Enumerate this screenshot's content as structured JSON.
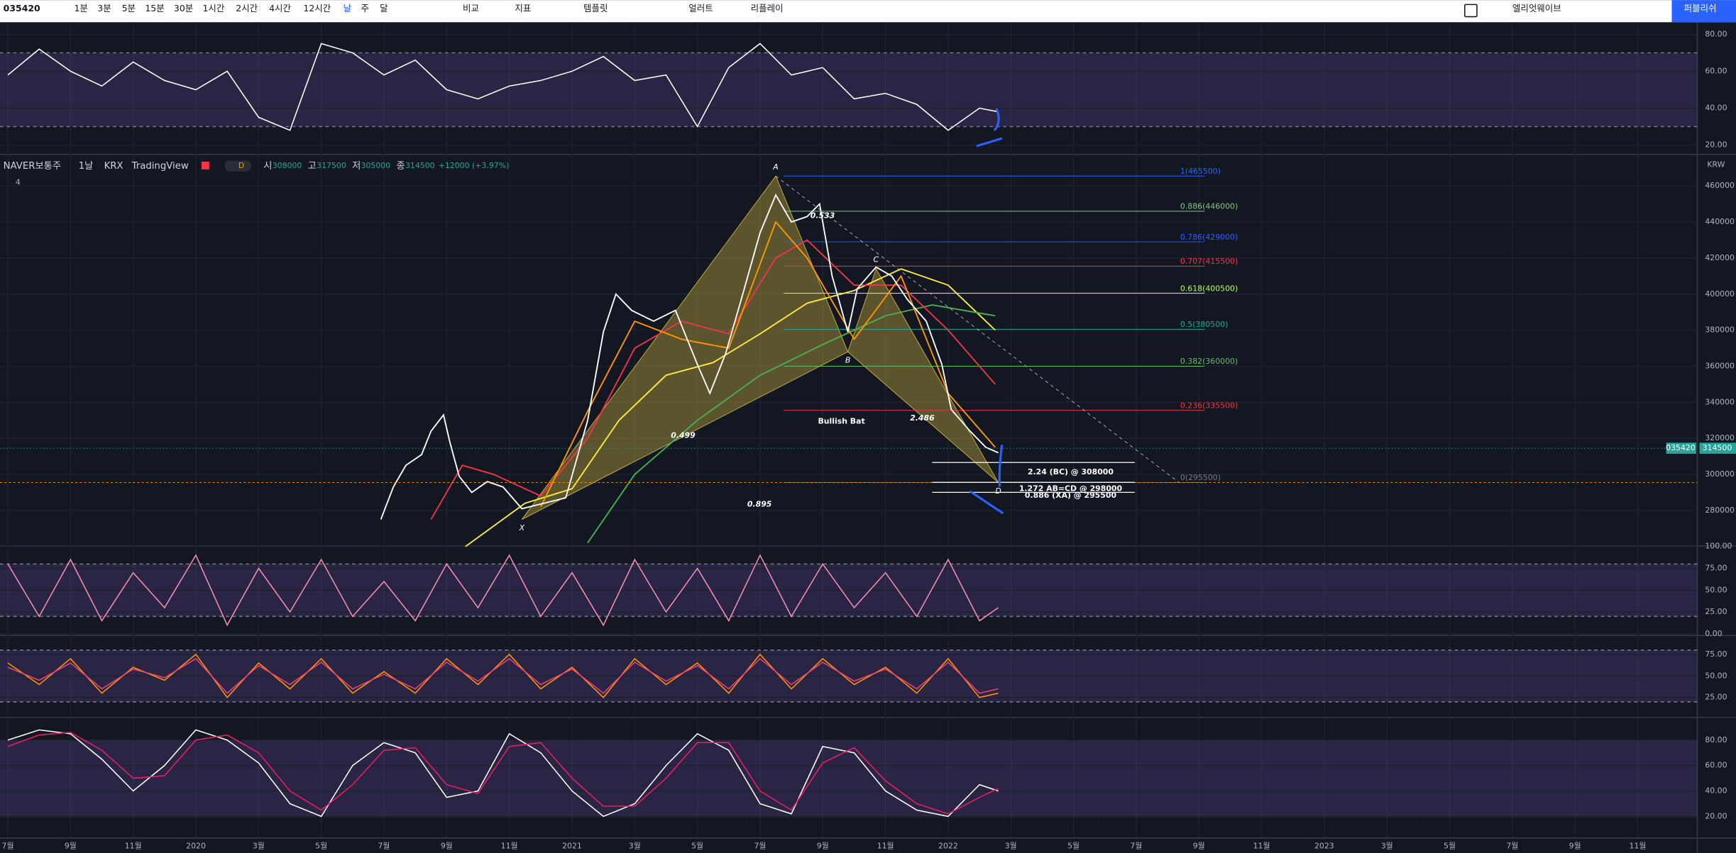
{
  "toolbar": {
    "symbol": "035420",
    "intervals": [
      "1분",
      "3분",
      "5분",
      "15분",
      "30분",
      "1시간",
      "2시간",
      "4시간",
      "12시간",
      "날",
      "주",
      "달"
    ],
    "buttons": [
      "비교",
      "지표",
      "템플릿",
      "얼러트",
      "리플레이"
    ],
    "elliott": "엘리엇웨이브",
    "publish": "퍼블리쉬"
  },
  "legend": {
    "symbol": "NAVER보통주",
    "interval": "1날",
    "exchange": "KRX",
    "source": "TradingView",
    "badge": "D",
    "ohlc": [
      {
        "label": "시",
        "value": 308000
      },
      {
        "label": "고",
        "value": 317500
      },
      {
        "label": "저",
        "value": 305000
      },
      {
        "label": "종",
        "value": 314500
      }
    ],
    "change": "+12000 (+3.97%)",
    "indicator_count": "4"
  },
  "currency": "KRW",
  "last": {
    "symbol": "035420",
    "price": 314500
  },
  "time_axis": {
    "xlim": [
      -0.25,
      53.9
    ],
    "xticks": [
      {
        "value": 0,
        "label": "7월"
      },
      {
        "value": 2,
        "label": "9월"
      },
      {
        "value": 4,
        "label": "11월"
      },
      {
        "value": 6,
        "label": "2020"
      },
      {
        "value": 8,
        "label": "3월"
      },
      {
        "value": 10,
        "label": "5월"
      },
      {
        "value": 12,
        "label": "7월"
      },
      {
        "value": 14,
        "label": "9월"
      },
      {
        "value": 16,
        "label": "11월"
      },
      {
        "value": 18,
        "label": "2021"
      },
      {
        "value": 20,
        "label": "3월"
      },
      {
        "value": 22,
        "label": "5월"
      },
      {
        "value": 24,
        "label": "7월"
      },
      {
        "value": 26,
        "label": "9월"
      },
      {
        "value": 28,
        "label": "11월"
      },
      {
        "value": 30,
        "label": "2022"
      },
      {
        "value": 32,
        "label": "3월"
      },
      {
        "value": 34,
        "label": "5월"
      },
      {
        "value": 36,
        "label": "7월"
      },
      {
        "value": 38,
        "label": "9월"
      },
      {
        "value": 40,
        "label": "11월"
      },
      {
        "value": 42,
        "label": "2023"
      },
      {
        "value": 44,
        "label": "3월"
      },
      {
        "value": 46,
        "label": "5월"
      },
      {
        "value": 48,
        "label": "7월"
      },
      {
        "value": 50,
        "label": "9월"
      },
      {
        "value": 52,
        "label": "11월"
      }
    ]
  },
  "price": {
    "ylim": [
      260600,
      477200
    ],
    "yticks": [
      460000,
      440000,
      420000,
      400000,
      380000,
      360000,
      340000,
      320000,
      300000,
      280000
    ],
    "x": [
      11.9,
      12.3,
      12.7,
      13.2,
      13.5,
      13.9,
      14.1,
      14.4,
      14.8,
      15.3,
      15.8,
      16.4,
      17.1,
      17.8,
      18.5,
      19.0,
      19.4,
      19.9,
      20.6,
      21.3,
      22.0,
      22.4,
      22.9,
      23.4,
      24.0,
      24.5,
      25.0,
      25.5,
      25.9,
      26.3,
      26.8,
      27.1,
      27.7,
      28.2,
      28.7,
      29.3,
      29.8,
      30.1,
      30.7,
      31.2,
      31.6
    ],
    "values": [
      275000,
      293000,
      305000,
      311000,
      324000,
      333000,
      318000,
      299000,
      290000,
      296000,
      293000,
      281000,
      284000,
      287000,
      330000,
      379000,
      400000,
      391000,
      385000,
      391000,
      361000,
      345000,
      367000,
      397000,
      434000,
      455000,
      440000,
      443000,
      450000,
      410000,
      379000,
      403000,
      415000,
      410000,
      397000,
      385000,
      361000,
      336000,
      324000,
      315000,
      312000
    ],
    "mas": [
      {
        "color": "#ffeb3b",
        "x": [
          14.6,
          16.5,
          18,
          19.5,
          21,
          22.5,
          24,
          25.5,
          27,
          28.5,
          30,
          31.5
        ],
        "values": [
          260000,
          284000,
          292000,
          330000,
          355000,
          362000,
          378000,
          395000,
          402000,
          414000,
          405000,
          380000
        ]
      },
      {
        "color": "#4caf50",
        "x": [
          18.5,
          20,
          22,
          24,
          26,
          28,
          29.5,
          31.5
        ],
        "values": [
          262000,
          300000,
          330000,
          355000,
          372000,
          388000,
          394000,
          388000
        ]
      },
      {
        "color": "#f23645",
        "x": [
          13.5,
          14.5,
          15.5,
          17,
          18.5,
          20,
          21.5,
          23,
          24.5,
          25.5,
          27,
          28.5,
          30,
          31.5
        ],
        "values": [
          275000,
          305000,
          300000,
          288000,
          320000,
          370000,
          385000,
          378000,
          420000,
          430000,
          405000,
          405000,
          380000,
          350000
        ]
      },
      {
        "color": "#ff9800",
        "x": [
          17,
          18.5,
          20,
          21.5,
          23,
          24.5,
          25.5,
          27,
          28.5,
          30,
          31.5
        ],
        "values": [
          282000,
          335000,
          385000,
          375000,
          370000,
          440000,
          420000,
          375000,
          410000,
          345000,
          315000
        ]
      }
    ],
    "pattern": {
      "title": "Bullish Bat",
      "points": [
        {
          "name": "X",
          "x": 16.4,
          "price": 275000
        },
        {
          "name": "A",
          "x": 24.5,
          "price": 465500
        },
        {
          "name": "B",
          "x": 26.8,
          "price": 368000
        },
        {
          "name": "C",
          "x": 27.7,
          "price": 414000
        },
        {
          "name": "D",
          "x": 31.6,
          "price": 295500
        }
      ],
      "ratios": [
        "0.533",
        "0.499",
        "2.486",
        "0.895"
      ],
      "targets": [
        "2.24 (BC) @ 308000",
        "1.272 AB=CD @ 298000",
        "0.886 (XA) @ 295500"
      ]
    },
    "fib": [
      {
        "label": "1(465500)",
        "price": 465500,
        "color": "#2962ff"
      },
      {
        "label": "0.886(446000)",
        "price": 446000,
        "color": "#81c784"
      },
      {
        "label": "0.786(429000)",
        "price": 429000,
        "color": "#2962ff"
      },
      {
        "label": "0.707(415500)",
        "price": 415500,
        "color": "#f23645"
      },
      {
        "label": "0.618(400500)",
        "price": 400500,
        "color": "#b2ff59"
      },
      {
        "label": "0.5(380500)",
        "price": 380500,
        "color": "#26a69a"
      },
      {
        "label": "0.382(360000)",
        "price": 360000,
        "color": "#66bb6a"
      },
      {
        "label": "0.236(335500)",
        "price": 335500,
        "color": "#f23645"
      },
      {
        "label": "0(295500)",
        "price": 295500,
        "color": "#787b86"
      }
    ]
  },
  "panels": [
    {
      "ylim": [
        15.2,
        86.6
      ],
      "yticks": [
        {
          "value": 80,
          "label": "80.00"
        },
        {
          "value": 60,
          "label": "60.00"
        },
        {
          "value": 40,
          "label": "40.00"
        },
        {
          "value": 20,
          "label": "20.00"
        }
      ],
      "levels": [
        70,
        30
      ],
      "x": [
        0,
        1,
        2,
        3,
        4,
        5,
        6,
        7,
        8,
        9,
        10,
        11,
        12,
        13,
        14,
        15,
        16,
        17,
        18,
        19,
        20,
        21,
        22,
        23,
        24,
        25,
        26,
        27,
        28,
        29,
        30,
        31,
        31.6
      ],
      "series": [
        {
          "color": "#ffffff",
          "values": [
            58,
            72,
            60,
            52,
            65,
            55,
            50,
            60,
            35,
            28,
            75,
            70,
            58,
            66,
            50,
            45,
            52,
            55,
            60,
            68,
            55,
            58,
            30,
            62,
            75,
            58,
            62,
            45,
            48,
            42,
            28,
            40,
            38
          ]
        }
      ]
    },
    {
      "ylim": [
        -1.3,
        100
      ],
      "yticks": [
        {
          "value": 100,
          "label": "100.00"
        },
        {
          "value": 75,
          "label": "75.00"
        },
        {
          "value": 50,
          "label": "50.00"
        },
        {
          "value": 25,
          "label": "25.00"
        },
        {
          "value": 0,
          "label": "0.00"
        }
      ],
      "levels": [
        80,
        20
      ],
      "x": [
        0,
        1,
        2,
        3,
        4,
        5,
        6,
        7,
        8,
        9,
        10,
        11,
        12,
        13,
        14,
        15,
        16,
        17,
        18,
        19,
        20,
        21,
        22,
        23,
        24,
        25,
        26,
        27,
        28,
        29,
        30,
        31,
        31.6
      ],
      "series": [
        {
          "color": "#f48fb1",
          "values": [
            80,
            20,
            85,
            15,
            70,
            30,
            90,
            10,
            75,
            25,
            85,
            20,
            60,
            15,
            80,
            30,
            90,
            20,
            70,
            10,
            85,
            25,
            75,
            15,
            90,
            20,
            80,
            30,
            70,
            20,
            85,
            15,
            30
          ]
        }
      ]
    },
    {
      "ylim": [
        2.6,
        96.2
      ],
      "yticks": [
        {
          "value": 75,
          "label": "75.00"
        },
        {
          "value": 50,
          "label": "50.00"
        },
        {
          "value": 25,
          "label": "25.00"
        }
      ],
      "levels": [
        80,
        20
      ],
      "x": [
        0,
        1,
        2,
        3,
        4,
        5,
        6,
        7,
        8,
        9,
        10,
        11,
        12,
        13,
        14,
        15,
        16,
        17,
        18,
        19,
        20,
        21,
        22,
        23,
        24,
        25,
        26,
        27,
        28,
        29,
        30,
        31,
        31.6
      ],
      "series": [
        {
          "color": "#ff9800",
          "values": [
            65,
            40,
            70,
            30,
            60,
            45,
            75,
            25,
            65,
            35,
            70,
            30,
            55,
            30,
            70,
            40,
            75,
            35,
            60,
            25,
            70,
            40,
            65,
            30,
            75,
            35,
            70,
            40,
            60,
            30,
            70,
            25,
            30
          ]
        },
        {
          "color": "#ec407a",
          "values": [
            60,
            45,
            65,
            35,
            58,
            48,
            70,
            30,
            62,
            40,
            66,
            35,
            52,
            35,
            66,
            44,
            70,
            40,
            58,
            30,
            66,
            44,
            62,
            35,
            70,
            40,
            66,
            44,
            58,
            35,
            66,
            30,
            35
          ]
        }
      ]
    },
    {
      "ylim": [
        3.5,
        97.4
      ],
      "yticks": [
        {
          "value": 80,
          "label": "80.00"
        },
        {
          "value": 60,
          "label": "60.00"
        },
        {
          "value": 40,
          "label": "40.00"
        },
        {
          "value": 20,
          "label": "20.00"
        }
      ],
      "levels": [
        80,
        20
      ],
      "x": [
        0,
        1,
        2,
        3,
        4,
        5,
        6,
        7,
        8,
        9,
        10,
        11,
        12,
        13,
        14,
        15,
        16,
        17,
        18,
        19,
        20,
        21,
        22,
        23,
        24,
        25,
        26,
        27,
        28,
        29,
        30,
        31,
        31.6
      ],
      "series": [
        {
          "color": "#ffffff",
          "values": [
            80,
            88,
            85,
            65,
            40,
            60,
            88,
            80,
            62,
            30,
            20,
            60,
            78,
            70,
            35,
            40,
            85,
            70,
            40,
            20,
            30,
            60,
            85,
            72,
            30,
            22,
            75,
            70,
            40,
            25,
            20,
            45,
            40
          ]
        },
        {
          "color": "#e91e63",
          "values": [
            75,
            84,
            86,
            72,
            50,
            52,
            80,
            84,
            70,
            40,
            25,
            45,
            72,
            74,
            45,
            38,
            75,
            78,
            50,
            28,
            28,
            50,
            78,
            78,
            40,
            25,
            62,
            74,
            48,
            30,
            22,
            35,
            42
          ]
        }
      ]
    }
  ]
}
